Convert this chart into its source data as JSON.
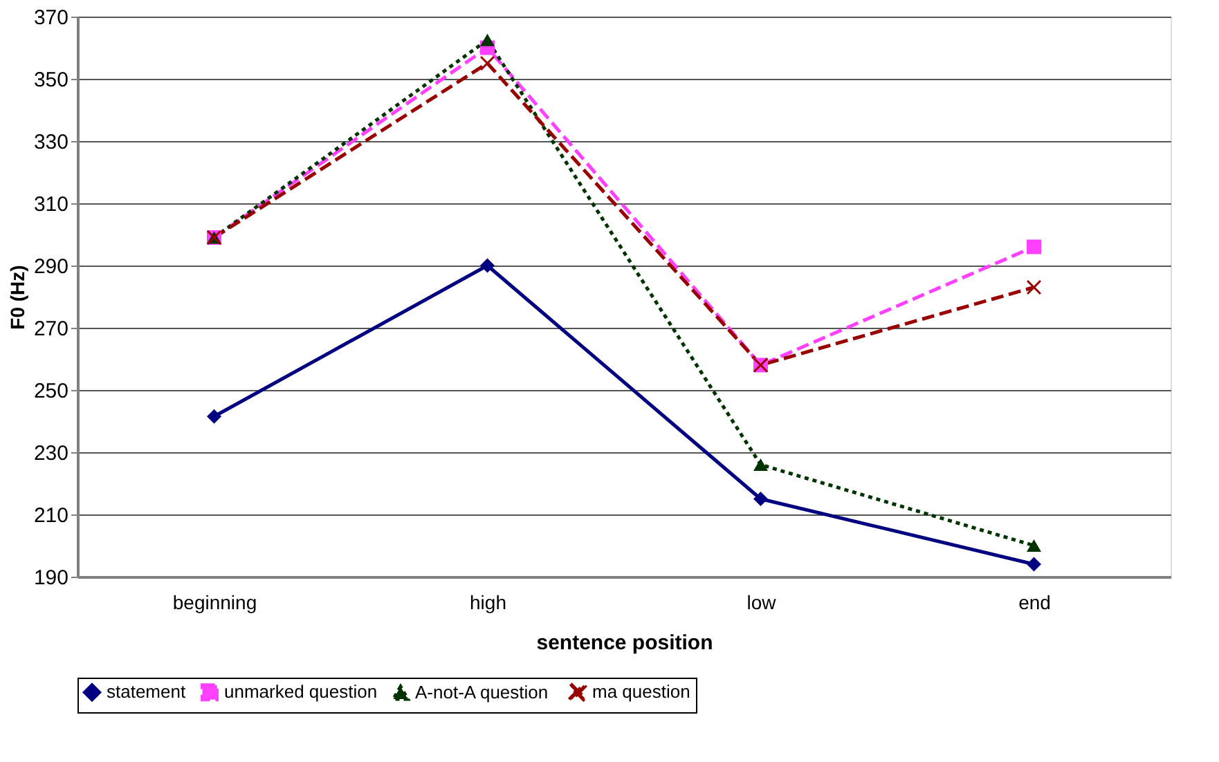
{
  "chart_data": {
    "type": "line",
    "xlabel": "sentence position",
    "ylabel": "F0 (Hz)",
    "categories": [
      "beginning",
      "high",
      "low",
      "end"
    ],
    "series": [
      {
        "name": "statement",
        "color": "#000080",
        "values": [
          241.5,
          290,
          215,
          194
        ],
        "marker": "diamond",
        "line_style": "solid"
      },
      {
        "name": "unmarked question",
        "color": "#ff40ff",
        "values": [
          299,
          360,
          258,
          296
        ],
        "marker": "square",
        "line_style": "dashed"
      },
      {
        "name": "A-not-A  question",
        "color": "#003300",
        "values": [
          299,
          362.5,
          226,
          200
        ],
        "marker": "triangle",
        "line_style": "dotted"
      },
      {
        "name": "ma question",
        "color": "#990000",
        "values": [
          299,
          355,
          258,
          283
        ],
        "marker": "cross",
        "line_style": "dashed"
      }
    ],
    "ylim": [
      190,
      370
    ],
    "yticks": [
      190,
      210,
      230,
      250,
      270,
      290,
      310,
      330,
      350,
      370
    ],
    "grid": "y",
    "legend": "bottom"
  }
}
